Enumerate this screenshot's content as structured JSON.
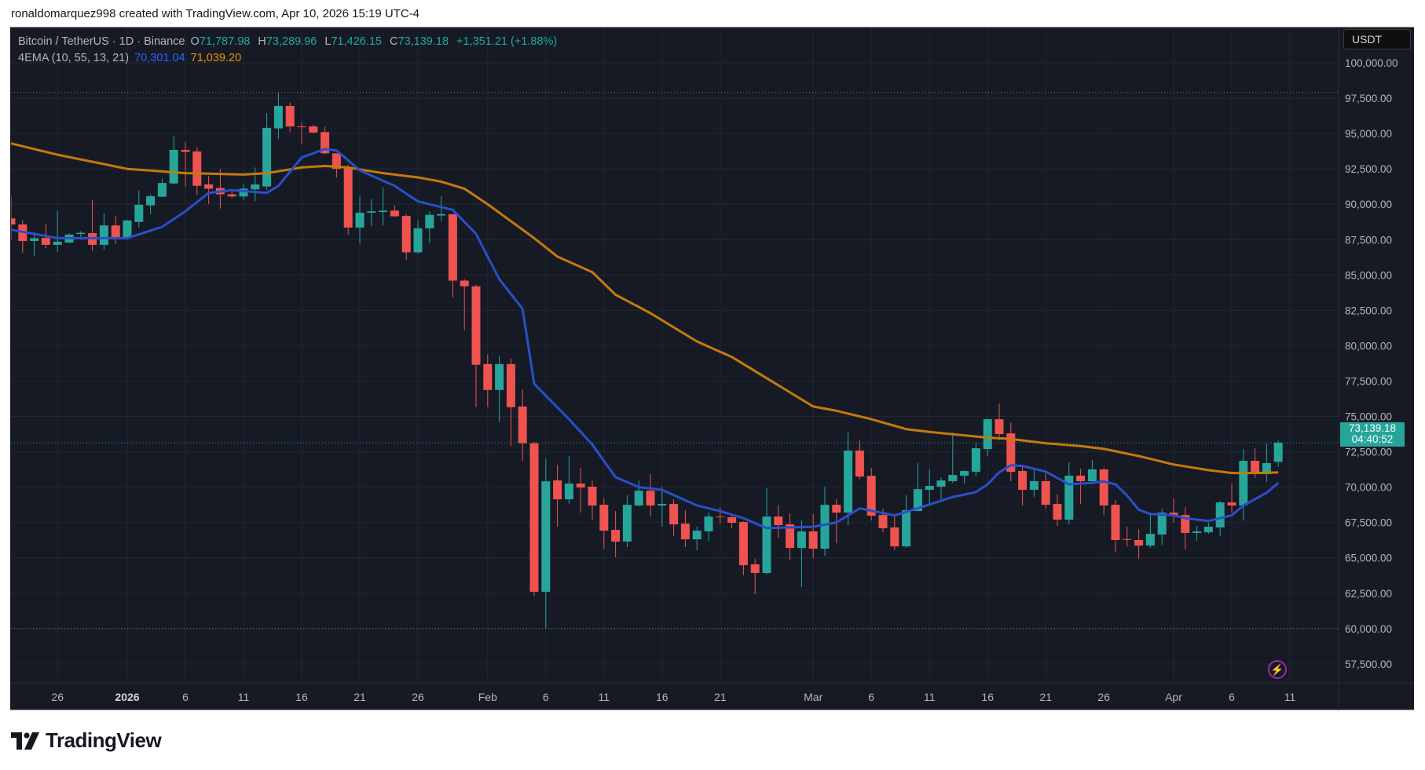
{
  "caption": "ronaldomarquez998 created with TradingView.com, Apr 10, 2026 15:19 UTC-4",
  "legend": {
    "symbol": "Bitcoin / TetherUS · 1D · Binance",
    "o_label": "O",
    "o": "71,787.98",
    "h_label": "H",
    "h": "73,289.96",
    "l_label": "L",
    "l": "71,426.15",
    "c_label": "C",
    "c": "73,139.18",
    "change": "+1,351.21 (+1.88%)",
    "indicator": "4EMA (10, 55, 13, 21)",
    "ema_fast_value": "70,301.04",
    "ema_slow_value": "71,039.20"
  },
  "currency": "USDT",
  "last_price": {
    "price": "73,139.18",
    "countdown": "04:40:52"
  },
  "logo": {
    "text": "TradingView"
  },
  "icons": {
    "alert": "lightning-bolt-icon",
    "logo": "tradingview-logo-icon"
  },
  "colors": {
    "background": "#161a25",
    "grid": "#232632",
    "up": "#26a69a",
    "down": "#ef5350",
    "ema_fast": "#2a4fc8",
    "ema_slow": "#c47a0c",
    "text": "#b2b5be"
  },
  "chart_data": {
    "type": "candlestick",
    "title": "Bitcoin / TetherUS · 1D · Binance",
    "ylim": [
      56000,
      101000
    ],
    "grid": true,
    "y_ticks": [
      "100,000.00",
      "97,500.00",
      "95,000.00",
      "92,500.00",
      "90,000.00",
      "87,500.00",
      "85,000.00",
      "82,500.00",
      "80,000.00",
      "77,500.00",
      "75,000.00",
      "72,500.00",
      "70,000.00",
      "67,500.00",
      "65,000.00",
      "62,500.00",
      "60,000.00",
      "57,500.00"
    ],
    "x_ticks": [
      {
        "label": "26",
        "date": "2025-12-26",
        "bold": false
      },
      {
        "label": "2026",
        "date": "2026-01-01",
        "bold": true
      },
      {
        "label": "6",
        "date": "2026-01-06",
        "bold": false
      },
      {
        "label": "11",
        "date": "2026-01-11",
        "bold": false
      },
      {
        "label": "16",
        "date": "2026-01-16",
        "bold": false
      },
      {
        "label": "21",
        "date": "2026-01-21",
        "bold": false
      },
      {
        "label": "26",
        "date": "2026-01-26",
        "bold": false
      },
      {
        "label": "Feb",
        "date": "2026-02-01",
        "bold": false
      },
      {
        "label": "6",
        "date": "2026-02-06",
        "bold": false
      },
      {
        "label": "11",
        "date": "2026-02-11",
        "bold": false
      },
      {
        "label": "16",
        "date": "2026-02-16",
        "bold": false
      },
      {
        "label": "21",
        "date": "2026-02-21",
        "bold": false
      },
      {
        "label": "Mar",
        "date": "2026-03-01",
        "bold": false
      },
      {
        "label": "6",
        "date": "2026-03-06",
        "bold": false
      },
      {
        "label": "11",
        "date": "2026-03-11",
        "bold": false
      },
      {
        "label": "16",
        "date": "2026-03-16",
        "bold": false
      },
      {
        "label": "21",
        "date": "2026-03-21",
        "bold": false
      },
      {
        "label": "26",
        "date": "2026-03-26",
        "bold": false
      },
      {
        "label": "Apr",
        "date": "2026-04-01",
        "bold": false
      },
      {
        "label": "6",
        "date": "2026-04-06",
        "bold": false
      },
      {
        "label": "11",
        "date": "2026-04-11",
        "bold": false
      }
    ],
    "last_price": 73139.18,
    "period_high": 97900,
    "period_low": 60000,
    "candles_columns": [
      "date",
      "open",
      "high",
      "low",
      "close"
    ],
    "candles": [
      [
        "2025-12-22",
        89000,
        90570,
        87500,
        88570
      ],
      [
        "2025-12-23",
        88570,
        88900,
        86570,
        87400
      ],
      [
        "2025-12-24",
        87400,
        88000,
        86350,
        87600
      ],
      [
        "2025-12-25",
        87620,
        88570,
        86900,
        87130
      ],
      [
        "2025-12-26",
        87130,
        89500,
        86630,
        87350
      ],
      [
        "2025-12-27",
        87290,
        87960,
        87240,
        87850
      ],
      [
        "2025-12-28",
        87900,
        88100,
        87500,
        87980
      ],
      [
        "2025-12-29",
        87960,
        90300,
        86700,
        87130
      ],
      [
        "2025-12-30",
        87130,
        89350,
        86800,
        88500
      ],
      [
        "2025-12-31",
        88500,
        89200,
        87200,
        87650
      ],
      [
        "2026-01-01",
        87650,
        88900,
        87500,
        88850
      ],
      [
        "2026-01-02",
        88750,
        90960,
        88350,
        89960
      ],
      [
        "2026-01-03",
        89920,
        90700,
        89300,
        90570
      ],
      [
        "2026-01-04",
        90530,
        91800,
        90500,
        91500
      ],
      [
        "2026-01-05",
        91470,
        94800,
        91400,
        93840
      ],
      [
        "2026-01-06",
        93840,
        94400,
        91250,
        93700
      ],
      [
        "2026-01-07",
        93730,
        94000,
        90640,
        91300
      ],
      [
        "2026-01-08",
        91400,
        92000,
        90030,
        91100
      ],
      [
        "2026-01-09",
        91150,
        92500,
        89700,
        90700
      ],
      [
        "2026-01-10",
        90700,
        90900,
        90450,
        90550
      ],
      [
        "2026-01-11",
        90550,
        91400,
        90300,
        91100
      ],
      [
        "2026-01-12",
        91050,
        92600,
        90200,
        91400
      ],
      [
        "2026-01-13",
        91250,
        96450,
        91000,
        95400
      ],
      [
        "2026-01-14",
        95360,
        97900,
        94600,
        96950
      ],
      [
        "2026-01-15",
        96950,
        97200,
        95100,
        95500
      ],
      [
        "2026-01-16",
        95500,
        95800,
        94300,
        95450
      ],
      [
        "2026-01-17",
        95500,
        95600,
        95000,
        95070
      ],
      [
        "2026-01-18",
        95100,
        95500,
        93550,
        93600
      ],
      [
        "2026-01-19",
        93600,
        93600,
        91900,
        92500
      ],
      [
        "2026-01-20",
        92600,
        92800,
        87850,
        88350
      ],
      [
        "2026-01-21",
        88350,
        90570,
        87240,
        89400
      ],
      [
        "2026-01-22",
        89400,
        90350,
        88470,
        89500
      ],
      [
        "2026-01-23",
        89450,
        91200,
        88500,
        89550
      ],
      [
        "2026-01-24",
        89550,
        89900,
        89100,
        89150
      ],
      [
        "2026-01-25",
        89180,
        89300,
        86030,
        86600
      ],
      [
        "2026-01-26",
        86600,
        88850,
        86500,
        88300
      ],
      [
        "2026-01-27",
        88300,
        89500,
        87240,
        89250
      ],
      [
        "2026-01-28",
        89200,
        90570,
        88800,
        89300
      ],
      [
        "2026-01-29",
        89300,
        89300,
        83400,
        84600
      ],
      [
        "2026-01-30",
        84600,
        84700,
        81100,
        84200
      ],
      [
        "2026-01-31",
        84200,
        84300,
        75650,
        78650
      ],
      [
        "2026-02-01",
        78700,
        79370,
        75650,
        76870
      ],
      [
        "2026-02-02",
        76870,
        79300,
        74580,
        78700
      ],
      [
        "2026-02-03",
        78700,
        79100,
        72900,
        75650
      ],
      [
        "2026-02-04",
        75700,
        76900,
        71860,
        73100
      ],
      [
        "2026-02-05",
        73100,
        73200,
        62300,
        62600
      ],
      [
        "2026-02-06",
        62600,
        72020,
        60000,
        70410
      ],
      [
        "2026-02-07",
        70470,
        71580,
        67220,
        69140
      ],
      [
        "2026-02-08",
        69140,
        72190,
        68830,
        70250
      ],
      [
        "2026-02-09",
        70250,
        71360,
        68200,
        69970
      ],
      [
        "2026-02-10",
        70030,
        70440,
        67700,
        68700
      ],
      [
        "2026-02-11",
        68750,
        69200,
        65640,
        66920
      ],
      [
        "2026-02-12",
        66980,
        68300,
        65040,
        66150
      ],
      [
        "2026-02-13",
        66150,
        69420,
        65760,
        68750
      ],
      [
        "2026-02-14",
        68700,
        70470,
        68640,
        69750
      ],
      [
        "2026-02-15",
        69750,
        70920,
        67920,
        68700
      ],
      [
        "2026-02-16",
        68700,
        70030,
        67200,
        68810
      ],
      [
        "2026-02-17",
        68810,
        69140,
        66530,
        67370
      ],
      [
        "2026-02-18",
        67420,
        68360,
        65760,
        66310
      ],
      [
        "2026-02-19",
        66310,
        67200,
        65530,
        66920
      ],
      [
        "2026-02-20",
        66870,
        68200,
        66200,
        67920
      ],
      [
        "2026-02-21",
        67920,
        68580,
        67420,
        67870
      ],
      [
        "2026-02-22",
        67870,
        68140,
        67090,
        67480
      ],
      [
        "2026-02-23",
        67530,
        67590,
        63760,
        64480
      ],
      [
        "2026-02-24",
        64540,
        64920,
        62430,
        63930
      ],
      [
        "2026-02-25",
        63930,
        69920,
        63810,
        67920
      ],
      [
        "2026-02-26",
        67920,
        68750,
        66420,
        67310
      ],
      [
        "2026-02-27",
        67370,
        68140,
        64810,
        65700
      ],
      [
        "2026-02-28",
        65700,
        67640,
        62930,
        66870
      ],
      [
        "2026-03-01",
        66870,
        68090,
        64980,
        65650
      ],
      [
        "2026-03-02",
        65650,
        70030,
        65150,
        68750
      ],
      [
        "2026-03-03",
        68750,
        69140,
        66030,
        68200
      ],
      [
        "2026-03-04",
        68200,
        73900,
        67310,
        72580
      ],
      [
        "2026-03-05",
        72580,
        73300,
        70580,
        70750
      ],
      [
        "2026-03-06",
        70800,
        71360,
        67640,
        67980
      ],
      [
        "2026-03-07",
        68030,
        68480,
        66810,
        67090
      ],
      [
        "2026-03-08",
        67150,
        68090,
        65530,
        65810
      ],
      [
        "2026-03-09",
        65810,
        69420,
        65700,
        68370
      ],
      [
        "2026-03-10",
        68310,
        71700,
        68310,
        69860
      ],
      [
        "2026-03-11",
        69810,
        71250,
        68860,
        70090
      ],
      [
        "2026-03-12",
        70030,
        70700,
        69140,
        70470
      ],
      [
        "2026-03-13",
        70420,
        73860,
        70300,
        70860
      ],
      [
        "2026-03-14",
        70810,
        71200,
        70250,
        71140
      ],
      [
        "2026-03-15",
        71080,
        73140,
        70750,
        72750
      ],
      [
        "2026-03-16",
        72690,
        74860,
        72190,
        74800
      ],
      [
        "2026-03-17",
        74800,
        75910,
        73300,
        73750
      ],
      [
        "2026-03-18",
        73800,
        74580,
        70420,
        71080
      ],
      [
        "2026-03-19",
        71140,
        71530,
        68700,
        69810
      ],
      [
        "2026-03-20",
        69810,
        71310,
        69310,
        70420
      ],
      [
        "2026-03-21",
        70420,
        71030,
        68480,
        68750
      ],
      [
        "2026-03-22",
        68810,
        69480,
        67260,
        67700
      ],
      [
        "2026-03-23",
        67700,
        71750,
        67370,
        70810
      ],
      [
        "2026-03-24",
        70810,
        71310,
        68810,
        70420
      ],
      [
        "2026-03-25",
        70420,
        71920,
        70300,
        71250
      ],
      [
        "2026-03-26",
        71250,
        71360,
        68030,
        68700
      ],
      [
        "2026-03-27",
        68750,
        69090,
        65420,
        66260
      ],
      [
        "2026-03-28",
        66330,
        67200,
        65810,
        66280
      ],
      [
        "2026-03-29",
        66260,
        67030,
        64920,
        65870
      ],
      [
        "2026-03-30",
        65870,
        68090,
        65700,
        66700
      ],
      [
        "2026-03-31",
        66650,
        68480,
        65920,
        68200
      ],
      [
        "2026-04-01",
        68200,
        69200,
        67480,
        67980
      ],
      [
        "2026-04-02",
        68030,
        68590,
        65590,
        66760
      ],
      [
        "2026-04-03",
        66760,
        67260,
        66200,
        66870
      ],
      [
        "2026-04-04",
        66810,
        67480,
        66700,
        67200
      ],
      [
        "2026-04-05",
        67150,
        69030,
        66530,
        68920
      ],
      [
        "2026-04-06",
        68920,
        70250,
        68200,
        68700
      ],
      [
        "2026-04-07",
        68700,
        72690,
        67640,
        71860
      ],
      [
        "2026-04-08",
        71860,
        72750,
        70640,
        70920
      ],
      [
        "2026-04-09",
        70920,
        73080,
        70360,
        71700
      ],
      [
        "2026-04-10",
        71787.98,
        73289.96,
        71426.15,
        73139.18
      ]
    ],
    "ema_fast": [
      [
        "2025-12-22",
        88200
      ],
      [
        "2025-12-26",
        87600
      ],
      [
        "2026-01-01",
        87600
      ],
      [
        "2026-01-04",
        88400
      ],
      [
        "2026-01-06",
        89500
      ],
      [
        "2026-01-08",
        90800
      ],
      [
        "2026-01-10",
        91000
      ],
      [
        "2026-01-13",
        90800
      ],
      [
        "2026-01-14",
        91300
      ],
      [
        "2026-01-16",
        93300
      ],
      [
        "2026-01-18",
        93900
      ],
      [
        "2026-01-19",
        93800
      ],
      [
        "2026-01-21",
        92400
      ],
      [
        "2026-01-24",
        91300
      ],
      [
        "2026-01-26",
        90200
      ],
      [
        "2026-01-28",
        89800
      ],
      [
        "2026-01-29",
        89600
      ],
      [
        "2026-01-31",
        87900
      ],
      [
        "2026-02-02",
        84700
      ],
      [
        "2026-02-04",
        82600
      ],
      [
        "2026-02-05",
        77300
      ],
      [
        "2026-02-08",
        74800
      ],
      [
        "2026-02-10",
        73000
      ],
      [
        "2026-02-12",
        70700
      ],
      [
        "2026-02-14",
        70000
      ],
      [
        "2026-02-16",
        69800
      ],
      [
        "2026-02-19",
        68700
      ],
      [
        "2026-02-21",
        68300
      ],
      [
        "2026-02-23",
        67800
      ],
      [
        "2026-02-25",
        67100
      ],
      [
        "2026-03-01",
        67200
      ],
      [
        "2026-03-03",
        67500
      ],
      [
        "2026-03-05",
        68500
      ],
      [
        "2026-03-08",
        68000
      ],
      [
        "2026-03-10",
        68500
      ],
      [
        "2026-03-13",
        69300
      ],
      [
        "2026-03-15",
        69650
      ],
      [
        "2026-03-16",
        70200
      ],
      [
        "2026-03-17",
        71050
      ],
      [
        "2026-03-18",
        71550
      ],
      [
        "2026-03-19",
        71500
      ],
      [
        "2026-03-21",
        71100
      ],
      [
        "2026-03-23",
        70200
      ],
      [
        "2026-03-25",
        70300
      ],
      [
        "2026-03-26",
        70400
      ],
      [
        "2026-03-27",
        70200
      ],
      [
        "2026-03-28",
        69400
      ],
      [
        "2026-03-29",
        68400
      ],
      [
        "2026-03-30",
        68100
      ],
      [
        "2026-04-01",
        68000
      ],
      [
        "2026-04-02",
        67800
      ],
      [
        "2026-04-04",
        67600
      ],
      [
        "2026-04-06",
        68000
      ],
      [
        "2026-04-07",
        68700
      ],
      [
        "2026-04-09",
        69600
      ],
      [
        "2026-04-10",
        70301.04
      ]
    ],
    "ema_slow": [
      [
        "2025-12-22",
        94300
      ],
      [
        "2025-12-26",
        93500
      ],
      [
        "2026-01-01",
        92500
      ],
      [
        "2026-01-06",
        92200
      ],
      [
        "2026-01-11",
        92100
      ],
      [
        "2026-01-13",
        92200
      ],
      [
        "2026-01-16",
        92600
      ],
      [
        "2026-01-18",
        92700
      ],
      [
        "2026-01-20",
        92600
      ],
      [
        "2026-01-23",
        92200
      ],
      [
        "2026-01-26",
        91900
      ],
      [
        "2026-01-28",
        91600
      ],
      [
        "2026-01-30",
        91100
      ],
      [
        "2026-02-01",
        90000
      ],
      [
        "2026-02-03",
        88800
      ],
      [
        "2026-02-05",
        87600
      ],
      [
        "2026-02-07",
        86300
      ],
      [
        "2026-02-10",
        85200
      ],
      [
        "2026-02-12",
        83600
      ],
      [
        "2026-02-15",
        82300
      ],
      [
        "2026-02-17",
        81300
      ],
      [
        "2026-02-19",
        80300
      ],
      [
        "2026-02-22",
        79200
      ],
      [
        "2026-02-24",
        78200
      ],
      [
        "2026-02-26",
        77200
      ],
      [
        "2026-03-01",
        75700
      ],
      [
        "2026-03-03",
        75400
      ],
      [
        "2026-03-06",
        74800
      ],
      [
        "2026-03-09",
        74100
      ],
      [
        "2026-03-11",
        73900
      ],
      [
        "2026-03-16",
        73500
      ],
      [
        "2026-03-18",
        73400
      ],
      [
        "2026-03-21",
        73100
      ],
      [
        "2026-03-24",
        72900
      ],
      [
        "2026-03-26",
        72700
      ],
      [
        "2026-03-29",
        72200
      ],
      [
        "2026-04-01",
        71600
      ],
      [
        "2026-04-04",
        71200
      ],
      [
        "2026-04-06",
        71000
      ],
      [
        "2026-04-08",
        71000
      ],
      [
        "2026-04-10",
        71039.2
      ]
    ]
  }
}
